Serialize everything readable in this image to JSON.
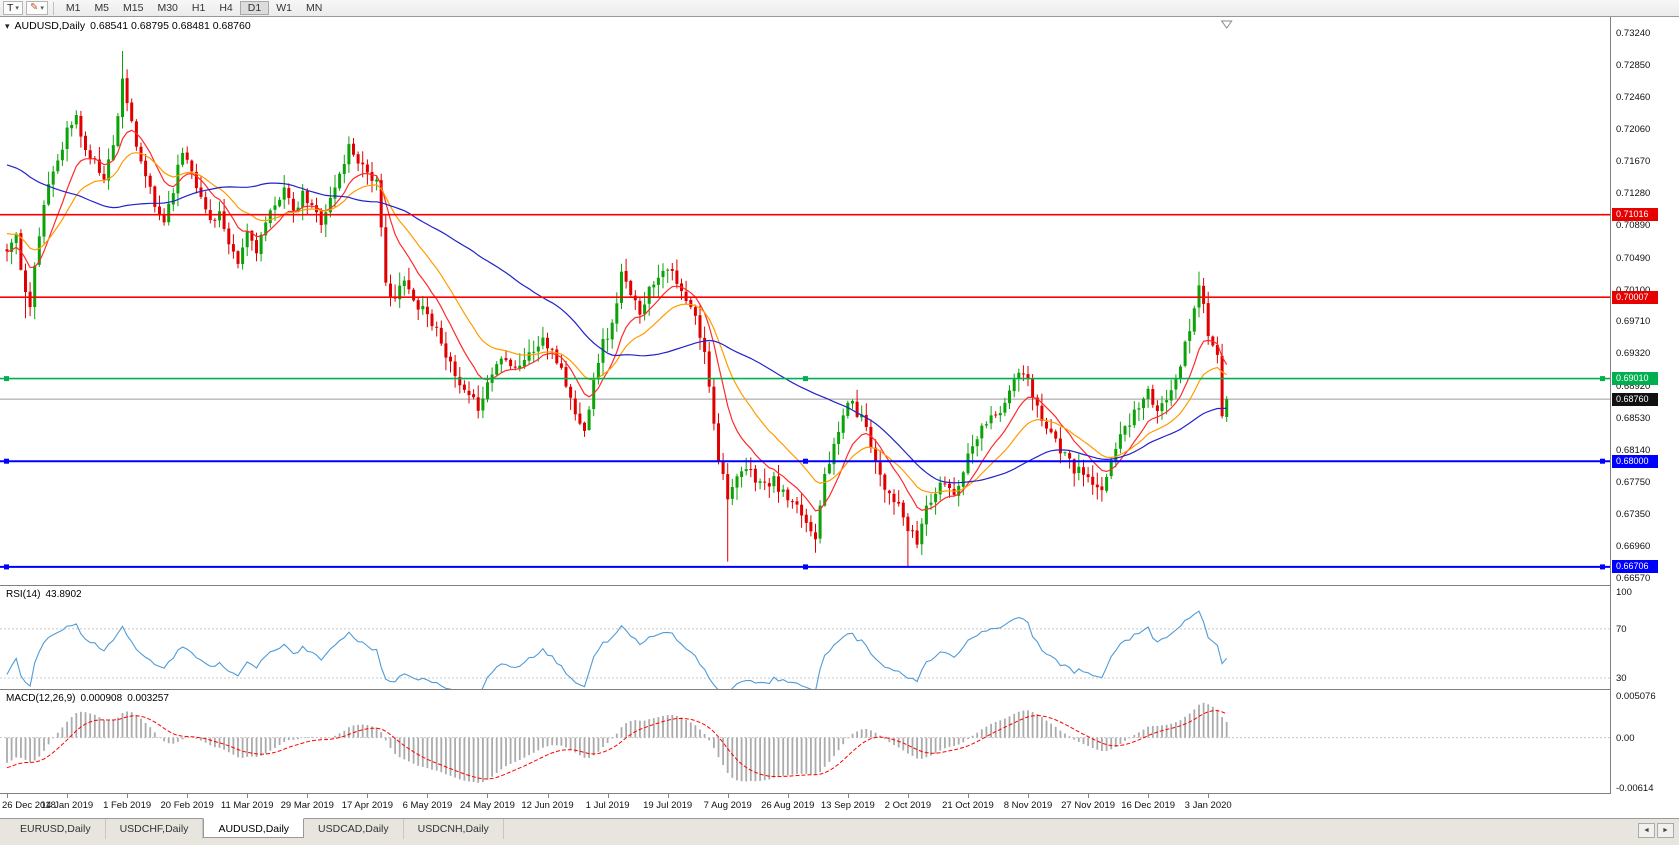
{
  "toolbar": {
    "text_tool": "T",
    "timeframes": [
      "M1",
      "M5",
      "M15",
      "M30",
      "H1",
      "H4",
      "D1",
      "W1",
      "MN"
    ],
    "active_timeframe": "D1"
  },
  "main_chart": {
    "title": "AUDUSD,Daily",
    "ohlc": "0.68541 0.68795 0.68481 0.68760"
  },
  "price_axis": {
    "ticks": [
      "0.73240",
      "0.72850",
      "0.72460",
      "0.72060",
      "0.71670",
      "0.71280",
      "0.70890",
      "0.70490",
      "0.70100",
      "0.69710",
      "0.69320",
      "0.68920",
      "0.68530",
      "0.68140",
      "0.67750",
      "0.67350",
      "0.66960",
      "0.66570"
    ],
    "badges": [
      {
        "label": "0.71016",
        "price": 0.71016,
        "color": "#e60000"
      },
      {
        "label": "0.70007",
        "price": 0.70007,
        "color": "#e60000"
      },
      {
        "label": "0.69010",
        "price": 0.6901,
        "color": "#00b050"
      },
      {
        "label": "0.68760",
        "price": 0.6876,
        "color": "#111111"
      },
      {
        "label": "0.68000",
        "price": 0.68,
        "color": "#0000ff"
      },
      {
        "label": "0.66706",
        "price": 0.66706,
        "color": "#0000ff"
      }
    ]
  },
  "rsi": {
    "label": "RSI(14)",
    "value": "43.8902",
    "ticks": [
      {
        "v": 100,
        "label": "100"
      },
      {
        "v": 70,
        "label": "70"
      },
      {
        "v": 30,
        "label": "30"
      }
    ]
  },
  "macd": {
    "label": "MACD(12,26,9)",
    "value_main": "0.000908",
    "value_signal": "0.003257",
    "ticks": [
      {
        "v": 0.005076,
        "label": "0.005076"
      },
      {
        "v": 0,
        "label": "0.00"
      },
      {
        "v": -0.00614,
        "label": "-0.00614"
      }
    ]
  },
  "time_axis": {
    "label_every": 13,
    "labels": [
      "26 Dec 2018",
      "14 Jan 2019",
      "1 Feb 2019",
      "20 Feb 2019",
      "11 Mar 2019",
      "29 Mar 2019",
      "17 Apr 2019",
      "6 May 2019",
      "24 May 2019",
      "12 Jun 2019",
      "1 Jul 2019",
      "19 Jul 2019",
      "7 Aug 2019",
      "26 Aug 2019",
      "13 Sep 2019",
      "2 Oct 2019",
      "21 Oct 2019",
      "8 Nov 2019",
      "27 Nov 2019",
      "16 Dec 2019",
      "3 Jan 2020"
    ]
  },
  "tabs": {
    "items": [
      "EURUSD,Daily",
      "USDCHF,Daily",
      "AUDUSD,Daily",
      "USDCAD,Daily",
      "USDCNH,Daily"
    ],
    "active": "AUDUSD,Daily"
  },
  "chart_data": {
    "type": "candlestick",
    "symbol": "AUDUSD",
    "period": "Daily",
    "bars": 265,
    "seed": 11,
    "jitter": 0.0007,
    "price_top": 0.7324,
    "price_bottom": 0.6657,
    "up_color": "#0ca30a",
    "down_color": "#e00000",
    "bid_price": 0.6876,
    "bid_color": "#9a9a9a",
    "rsi_period": 14,
    "rsi_color": "#4f9bd8",
    "rsi_levels": [
      70,
      30
    ],
    "macd_periods": [
      12,
      26,
      9
    ],
    "macd_axis": {
      "max": 0.005076,
      "min": -0.00614
    },
    "macd_hist_color": "#ababab",
    "macd_signal_color": "#ff0000",
    "ma": [
      {
        "type": "ema",
        "period": 10,
        "color": "#ff2a2a"
      },
      {
        "type": "ema",
        "period": 21,
        "color": "#ff9c00"
      },
      {
        "type": "sma",
        "period": 50,
        "color": "#2222cc"
      }
    ],
    "hlines": [
      {
        "price": 0.71016,
        "color": "#ff0000",
        "width": 1.6,
        "handles": false
      },
      {
        "price": 0.70007,
        "color": "#ff0000",
        "width": 1.6,
        "handles": false
      },
      {
        "price": 0.6901,
        "color": "#00b050",
        "width": 1.6,
        "handles": true
      },
      {
        "price": 0.68,
        "color": "#0000ff",
        "width": 2,
        "handles": true
      },
      {
        "price": 0.66706,
        "color": "#0000ff",
        "width": 2,
        "handles": true
      }
    ],
    "pre_anchors": [
      [
        -50,
        0.715
      ],
      [
        -40,
        0.726
      ],
      [
        -33,
        0.731
      ],
      [
        -25,
        0.7195
      ],
      [
        -15,
        0.707
      ],
      [
        -8,
        0.704
      ],
      [
        -1,
        0.7058
      ]
    ],
    "anchors": [
      [
        0,
        0.706
      ],
      [
        2,
        0.7075
      ],
      [
        4,
        0.7005
      ],
      [
        5,
        0.6995
      ],
      [
        6,
        0.704
      ],
      [
        9,
        0.714
      ],
      [
        11,
        0.717
      ],
      [
        13,
        0.7205
      ],
      [
        15,
        0.722
      ],
      [
        17,
        0.718
      ],
      [
        19,
        0.7165
      ],
      [
        21,
        0.715
      ],
      [
        23,
        0.7185
      ],
      [
        25,
        0.727
      ],
      [
        26,
        0.724
      ],
      [
        28,
        0.718
      ],
      [
        30,
        0.715
      ],
      [
        32,
        0.711
      ],
      [
        34,
        0.7095
      ],
      [
        36,
        0.7135
      ],
      [
        38,
        0.718
      ],
      [
        40,
        0.716
      ],
      [
        42,
        0.712
      ],
      [
        44,
        0.7095
      ],
      [
        46,
        0.7105
      ],
      [
        48,
        0.706
      ],
      [
        50,
        0.704
      ],
      [
        52,
        0.708
      ],
      [
        54,
        0.706
      ],
      [
        56,
        0.709
      ],
      [
        58,
        0.711
      ],
      [
        60,
        0.714
      ],
      [
        62,
        0.71
      ],
      [
        64,
        0.7125
      ],
      [
        66,
        0.711
      ],
      [
        68,
        0.7095
      ],
      [
        70,
        0.712
      ],
      [
        72,
        0.715
      ],
      [
        74,
        0.7185
      ],
      [
        76,
        0.717
      ],
      [
        78,
        0.7155
      ],
      [
        80,
        0.714
      ],
      [
        81,
        0.708
      ],
      [
        82,
        0.7015
      ],
      [
        84,
        0.7
      ],
      [
        86,
        0.702
      ],
      [
        88,
        0.6995
      ],
      [
        90,
        0.699
      ],
      [
        92,
        0.697
      ],
      [
        94,
        0.695
      ],
      [
        96,
        0.6915
      ],
      [
        98,
        0.689
      ],
      [
        100,
        0.6875
      ],
      [
        102,
        0.6868
      ],
      [
        104,
        0.6895
      ],
      [
        106,
        0.692
      ],
      [
        108,
        0.693
      ],
      [
        110,
        0.6915
      ],
      [
        112,
        0.6925
      ],
      [
        114,
        0.6935
      ],
      [
        116,
        0.695
      ],
      [
        118,
        0.693
      ],
      [
        120,
        0.6915
      ],
      [
        122,
        0.6875
      ],
      [
        124,
        0.6845
      ],
      [
        125,
        0.6835
      ],
      [
        127,
        0.6905
      ],
      [
        129,
        0.6945
      ],
      [
        131,
        0.6965
      ],
      [
        133,
        0.703
      ],
      [
        135,
        0.7
      ],
      [
        137,
        0.6985
      ],
      [
        139,
        0.701
      ],
      [
        141,
        0.703
      ],
      [
        143,
        0.704
      ],
      [
        145,
        0.7015
      ],
      [
        147,
        0.6995
      ],
      [
        149,
        0.6975
      ],
      [
        151,
        0.693
      ],
      [
        152,
        0.6895
      ],
      [
        154,
        0.6805
      ],
      [
        156,
        0.676
      ],
      [
        158,
        0.6775
      ],
      [
        160,
        0.679
      ],
      [
        162,
        0.678
      ],
      [
        164,
        0.677
      ],
      [
        166,
        0.6775
      ],
      [
        168,
        0.676
      ],
      [
        170,
        0.6745
      ],
      [
        172,
        0.6735
      ],
      [
        174,
        0.6715
      ],
      [
        175,
        0.671
      ],
      [
        177,
        0.679
      ],
      [
        179,
        0.6815
      ],
      [
        181,
        0.6855
      ],
      [
        182,
        0.6875
      ],
      [
        184,
        0.686
      ],
      [
        186,
        0.6845
      ],
      [
        188,
        0.68
      ],
      [
        190,
        0.677
      ],
      [
        192,
        0.6755
      ],
      [
        194,
        0.673
      ],
      [
        195,
        0.6715
      ],
      [
        197,
        0.67
      ],
      [
        199,
        0.6745
      ],
      [
        201,
        0.676
      ],
      [
        203,
        0.6775
      ],
      [
        205,
        0.676
      ],
      [
        207,
        0.679
      ],
      [
        209,
        0.6825
      ],
      [
        211,
        0.684
      ],
      [
        213,
        0.686
      ],
      [
        215,
        0.6855
      ],
      [
        217,
        0.6885
      ],
      [
        219,
        0.691
      ],
      [
        221,
        0.6895
      ],
      [
        223,
        0.6865
      ],
      [
        225,
        0.6845
      ],
      [
        227,
        0.6825
      ],
      [
        229,
        0.6805
      ],
      [
        231,
        0.679
      ],
      [
        233,
        0.6785
      ],
      [
        235,
        0.677
      ],
      [
        237,
        0.6758
      ],
      [
        239,
        0.6805
      ],
      [
        241,
        0.683
      ],
      [
        243,
        0.685
      ],
      [
        245,
        0.687
      ],
      [
        247,
        0.6885
      ],
      [
        249,
        0.6855
      ],
      [
        251,
        0.688
      ],
      [
        253,
        0.6905
      ],
      [
        255,
        0.694
      ],
      [
        257,
        0.6985
      ],
      [
        258,
        0.7018
      ],
      [
        259,
        0.6995
      ],
      [
        260,
        0.695
      ],
      [
        261,
        0.6938
      ],
      [
        262,
        0.693
      ],
      [
        263,
        0.6855
      ],
      [
        264,
        0.6876
      ]
    ],
    "wick_overrides": [
      {
        "i": 4,
        "low": 0.6975
      },
      {
        "i": 25,
        "high": 0.7302
      },
      {
        "i": 156,
        "low": 0.6677
      },
      {
        "i": 175,
        "low": 0.6688
      },
      {
        "i": 195,
        "low": 0.6671
      },
      {
        "i": 258,
        "high": 0.7032
      }
    ],
    "last_bar": {
      "o": 0.68541,
      "h": 0.68795,
      "l": 0.68481,
      "c": 0.6876
    }
  }
}
